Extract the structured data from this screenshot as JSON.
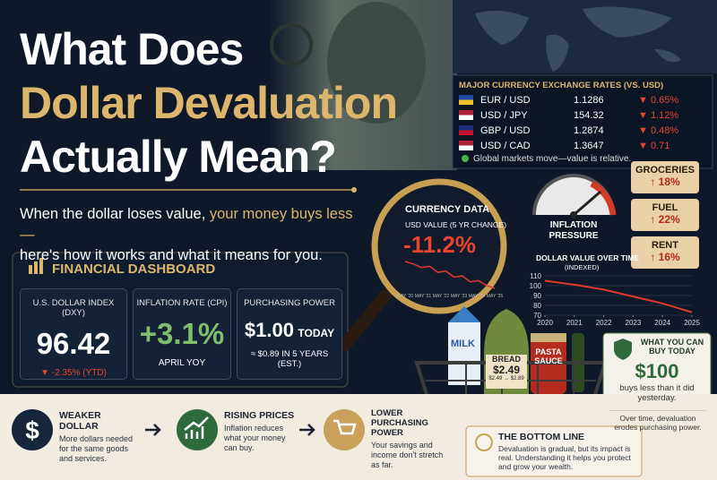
{
  "header": {
    "title_lines": [
      "What Does",
      "Dollar Devaluation",
      "Actually Mean?"
    ],
    "subtitle_start": "When the dollar loses value, ",
    "subtitle_highlight": "your money buys less—",
    "subtitle_end": "here's how it works and what it means for you."
  },
  "exchange": {
    "title": "MAJOR CURRENCY EXCHANGE RATES (VS. USD)",
    "rows": [
      [
        "EUR / USD",
        "1.1286",
        "▼ 0.65%"
      ],
      [
        "USD / JPY",
        "154.32",
        "▼ 1.12%"
      ],
      [
        "GBP / USD",
        "1.2874",
        "▼ 0.48%"
      ],
      [
        "USD / CAD",
        "1.3647",
        "▼ 0.71"
      ]
    ],
    "note": "Global markets move—value is relative."
  },
  "gauge": {
    "label_lines": [
      "INFLATION",
      "PRESSURE"
    ]
  },
  "tags": [
    [
      "GROCERIES",
      "↑ 18%"
    ],
    [
      "FUEL",
      "↑ 22%"
    ],
    [
      "RENT",
      "↑ 16%"
    ]
  ],
  "magnifier": {
    "title": "CURRENCY DATA",
    "subtitle": "USD VALUE (5 YR CHANGE)",
    "change": "-11.2%",
    "xlabels": [
      "MAY '20",
      "MAY '21",
      "MAY '22",
      "MAY '23",
      "MAY '24",
      "MAY '25"
    ],
    "values": [
      100,
      99,
      97.5,
      98,
      95.5,
      96,
      93.5,
      94,
      91.5,
      92,
      90,
      88.8
    ]
  },
  "dollar_chart": {
    "type": "line",
    "title": "DOLLAR VALUE OVER TIME",
    "subtitle": "(INDEXED)",
    "x": [
      2020,
      2021,
      2022,
      2023,
      2024,
      2025
    ],
    "values": [
      105,
      101,
      96,
      89,
      82,
      73
    ],
    "color": "#e03a2f",
    "xlim": [
      2020,
      2025
    ],
    "ylim": [
      70,
      110
    ],
    "xticks": [
      2020,
      2021,
      2022,
      2023,
      2024,
      2025
    ],
    "yticks": [
      70,
      80,
      90,
      100,
      110
    ],
    "grid": true
  },
  "dashboard": {
    "title": "FINANCIAL DASHBOARD",
    "cards": [
      {
        "label": "U.S. DOLLAR INDEX (DXY)",
        "value": "96.42",
        "note": "▼ -2.35% (YTD)"
      },
      {
        "label": "INFLATION RATE (CPI)",
        "value": "+3.1%",
        "note": "APRIL YOY"
      },
      {
        "label": "PURCHASING POWER",
        "value": "$1.00",
        "value_suffix": "TODAY",
        "note": "≈ $0.89 IN 5 YEARS (EST.)"
      }
    ]
  },
  "basket": {
    "milk": "MILK",
    "bread": "BREAD",
    "bread_price": "$2.49",
    "bread_change": "$2.49 → $2.89",
    "sauce": "PASTA SAUCE"
  },
  "buy_box": {
    "title": "WHAT YOU CAN BUY TODAY",
    "amount": "$100",
    "text": "buys less than it did yesterday.",
    "footer": "Over time, devaluation erodes purchasing power."
  },
  "steps": [
    {
      "title": "WEAKER DOLLAR",
      "text": "More dollars needed for the same goods and services."
    },
    {
      "title": "RISING PRICES",
      "text": "Inflation reduces what your money can buy."
    },
    {
      "title": "LOWER PURCHASING POWER",
      "text": "Your savings and income don't stretch as far."
    }
  ],
  "bottom_line": {
    "title": "THE BOTTOM LINE",
    "text": "Devaluation is gradual, but its impact is real. Understanding it helps you protect and grow your wealth."
  }
}
